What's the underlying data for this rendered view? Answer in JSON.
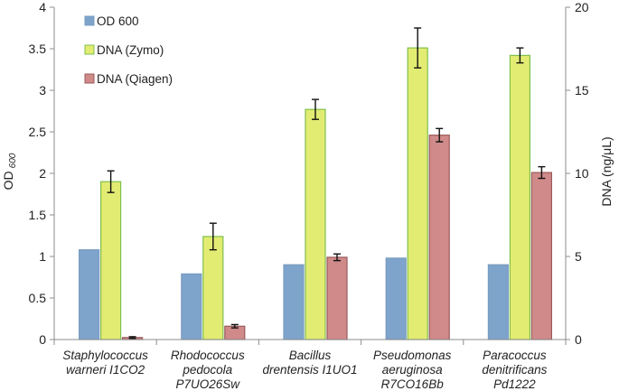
{
  "chart_data": {
    "type": "bar",
    "categories": [
      [
        "Staphylococcus",
        "warneri I1CO2"
      ],
      [
        "Rhodococcus",
        "pedocola",
        "P7UO26Sw"
      ],
      [
        "Bacillus",
        "drentensis I1UO1"
      ],
      [
        "Pseudomonas",
        "aeruginosa",
        "R7CO16Bb"
      ],
      [
        "Paracoccus",
        "denitrificans",
        "Pd1222"
      ]
    ],
    "series": [
      {
        "name": "OD 600",
        "axis": "left",
        "color": "#7ea4cc",
        "stroke": "#7a9cc0",
        "values": [
          1.08,
          0.79,
          0.9,
          0.98,
          0.9
        ],
        "errors": null
      },
      {
        "name": "DNA (Zymo)",
        "axis": "right",
        "color": "#e3ec72",
        "stroke": "#7fbf4d",
        "values": [
          9.5,
          6.2,
          13.85,
          17.55,
          17.1
        ],
        "errors": [
          0.65,
          0.8,
          0.6,
          1.2,
          0.45
        ]
      },
      {
        "name": "DNA (Qiagen)",
        "axis": "right",
        "color": "#d08a8a",
        "stroke": "#9a5a5a",
        "values": [
          0.12,
          0.8,
          4.95,
          12.3,
          10.05
        ],
        "errors": [
          0.05,
          0.1,
          0.2,
          0.4,
          0.35
        ]
      }
    ],
    "y_left": {
      "label": "OD",
      "label_sub": "600",
      "ylim": [
        0,
        4
      ],
      "ticks": [
        "0",
        "0.5",
        "1",
        "1.5",
        "2",
        "2.5",
        "3",
        "3.5",
        "4"
      ]
    },
    "y_right": {
      "label": "DNA (ng/μL)",
      "ylim": [
        0,
        20
      ],
      "ticks": [
        "0",
        "5",
        "10",
        "15",
        "20"
      ]
    },
    "legend_position": "top-left"
  }
}
